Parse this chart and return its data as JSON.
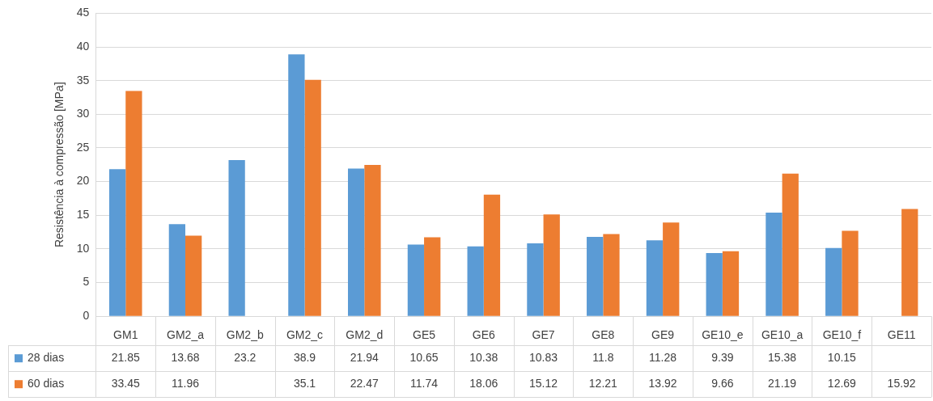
{
  "chart_data": {
    "type": "bar",
    "ylabel": "Resistência à compressão [MPa]",
    "categories": [
      "GM1",
      "GM2_a",
      "GM2_b",
      "GM2_c",
      "GM2_d",
      "GE5",
      "GE6",
      "GE7",
      "GE8",
      "GE9",
      "GE10_e",
      "GE10_a",
      "GE10_f",
      "GE11"
    ],
    "series": [
      {
        "name": "28 dias",
        "color": "#5b9bd5",
        "values": [
          21.85,
          13.68,
          23.2,
          38.9,
          21.94,
          10.65,
          10.38,
          10.83,
          11.8,
          11.28,
          9.39,
          15.38,
          10.15,
          null
        ]
      },
      {
        "name": "60 dias",
        "color": "#ed7d31",
        "values": [
          33.45,
          11.96,
          null,
          35.1,
          22.47,
          11.74,
          18.06,
          15.12,
          12.21,
          13.92,
          9.66,
          21.19,
          12.69,
          15.92
        ]
      }
    ],
    "ylim": [
      0,
      45
    ],
    "yticks": [
      0,
      5,
      10,
      15,
      20,
      25,
      30,
      35,
      40,
      45
    ],
    "grid": "y",
    "legend": "bottom",
    "data_labels": true
  }
}
